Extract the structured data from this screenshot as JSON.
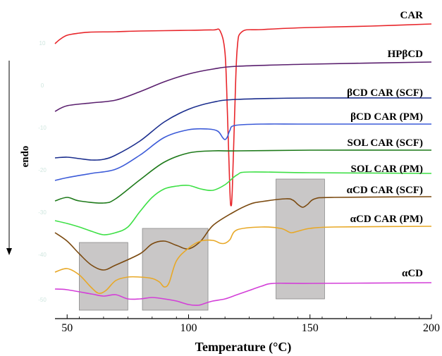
{
  "chart_data": {
    "type": "line",
    "title": "",
    "xlabel": "Temperature (°C)",
    "ylabel": "",
    "xlim": [
      45,
      200
    ],
    "xticks": [
      50,
      100,
      150,
      200
    ],
    "endo_label": "endo",
    "faint_labels": [
      "10",
      "0",
      "-10",
      "-20",
      "-30",
      "-40",
      "-50"
    ],
    "grey_boxes": [
      {
        "x0": 55,
        "x1": 75
      },
      {
        "x0": 81,
        "x1": 108
      },
      {
        "x0": 136,
        "x1": 156
      }
    ],
    "series": [
      {
        "name": "CAR",
        "color": "#e8262b",
        "points": [
          [
            45,
            62
          ],
          [
            47,
            56
          ],
          [
            50,
            50
          ],
          [
            55,
            47
          ],
          [
            60,
            45.5
          ],
          [
            70,
            45
          ],
          [
            80,
            44
          ],
          [
            100,
            43
          ],
          [
            110,
            42.5
          ],
          [
            113,
            44
          ],
          [
            115,
            75
          ],
          [
            116,
            160
          ],
          [
            117,
            270
          ],
          [
            117.5,
            292
          ],
          [
            118,
            270
          ],
          [
            119,
            160
          ],
          [
            120,
            70
          ],
          [
            122,
            45
          ],
          [
            130,
            42
          ],
          [
            150,
            39
          ],
          [
            175,
            37
          ],
          [
            200,
            34
          ]
        ]
      },
      {
        "name": "HPβCD",
        "color": "#5a1f6e",
        "points": [
          [
            45,
            158
          ],
          [
            50,
            150
          ],
          [
            60,
            146
          ],
          [
            70,
            142
          ],
          [
            80,
            130
          ],
          [
            90,
            116
          ],
          [
            100,
            105
          ],
          [
            110,
            98
          ],
          [
            120,
            94
          ],
          [
            150,
            91
          ],
          [
            200,
            88
          ]
        ]
      },
      {
        "name": "βCD CAR (SCF)",
        "color": "#1b2e8e",
        "points": [
          [
            45,
            224
          ],
          [
            50,
            223
          ],
          [
            55,
            225
          ],
          [
            60,
            227
          ],
          [
            65,
            226
          ],
          [
            70,
            220
          ],
          [
            80,
            200
          ],
          [
            90,
            173
          ],
          [
            100,
            155
          ],
          [
            110,
            145
          ],
          [
            120,
            141
          ],
          [
            150,
            139
          ],
          [
            200,
            139
          ]
        ]
      },
      {
        "name": "βCD CAR (PM)",
        "color": "#3c5bd8",
        "points": [
          [
            45,
            256
          ],
          [
            50,
            252
          ],
          [
            60,
            246
          ],
          [
            70,
            240
          ],
          [
            80,
            220
          ],
          [
            90,
            195
          ],
          [
            100,
            184
          ],
          [
            108,
            183
          ],
          [
            112,
            186
          ],
          [
            114,
            195
          ],
          [
            115,
            198
          ],
          [
            116,
            194
          ],
          [
            117,
            185
          ],
          [
            119,
            178
          ],
          [
            130,
            176
          ],
          [
            150,
            176
          ],
          [
            200,
            176
          ]
        ]
      },
      {
        "name": "SOL CAR (SCF)",
        "color": "#1e7a1a",
        "points": [
          [
            45,
            285
          ],
          [
            50,
            280
          ],
          [
            55,
            285
          ],
          [
            65,
            288
          ],
          [
            70,
            282
          ],
          [
            80,
            255
          ],
          [
            90,
            230
          ],
          [
            100,
            217
          ],
          [
            110,
            214
          ],
          [
            120,
            214
          ],
          [
            150,
            213
          ],
          [
            200,
            213
          ]
        ]
      },
      {
        "name": "SOL CAR (PM)",
        "color": "#3ee046",
        "points": [
          [
            45,
            313
          ],
          [
            50,
            317
          ],
          [
            55,
            322
          ],
          [
            60,
            328
          ],
          [
            65,
            333
          ],
          [
            70,
            330
          ],
          [
            75,
            322
          ],
          [
            80,
            300
          ],
          [
            85,
            280
          ],
          [
            90,
            268
          ],
          [
            95,
            264
          ],
          [
            100,
            263
          ],
          [
            105,
            268
          ],
          [
            110,
            270
          ],
          [
            115,
            262
          ],
          [
            120,
            248
          ],
          [
            125,
            244
          ],
          [
            150,
            245
          ],
          [
            200,
            246
          ]
        ]
      },
      {
        "name": "αCD CAR (SCF)",
        "color": "#7b4a10",
        "points": [
          [
            45,
            330
          ],
          [
            50,
            342
          ],
          [
            55,
            360
          ],
          [
            60,
            376
          ],
          [
            65,
            383
          ],
          [
            70,
            376
          ],
          [
            80,
            360
          ],
          [
            85,
            346
          ],
          [
            90,
            342
          ],
          [
            95,
            348
          ],
          [
            100,
            353
          ],
          [
            105,
            342
          ],
          [
            110,
            320
          ],
          [
            118,
            302
          ],
          [
            125,
            290
          ],
          [
            130,
            286
          ],
          [
            140,
            282
          ],
          [
            143,
            284
          ],
          [
            145,
            290
          ],
          [
            147,
            294
          ],
          [
            149,
            290
          ],
          [
            152,
            282
          ],
          [
            160,
            280
          ],
          [
            200,
            279
          ]
        ]
      },
      {
        "name": "αCD CAR (PM)",
        "color": "#e8a826",
        "points": [
          [
            45,
            386
          ],
          [
            50,
            381
          ],
          [
            55,
            390
          ],
          [
            60,
            408
          ],
          [
            63,
            416
          ],
          [
            66,
            412
          ],
          [
            70,
            398
          ],
          [
            75,
            393
          ],
          [
            80,
            393
          ],
          [
            85,
            395
          ],
          [
            88,
            400
          ],
          [
            90,
            407
          ],
          [
            92,
            401
          ],
          [
            95,
            370
          ],
          [
            100,
            352
          ],
          [
            105,
            342
          ],
          [
            110,
            341
          ],
          [
            113,
            345
          ],
          [
            115,
            345
          ],
          [
            117,
            340
          ],
          [
            120,
            326
          ],
          [
            130,
            322
          ],
          [
            138,
            324
          ],
          [
            142,
            330
          ],
          [
            145,
            328
          ],
          [
            150,
            324
          ],
          [
            160,
            322
          ],
          [
            200,
            321
          ]
        ]
      },
      {
        "name": "αCD",
        "color": "#d33fd8",
        "points": [
          [
            45,
            410
          ],
          [
            50,
            411
          ],
          [
            60,
            417
          ],
          [
            65,
            420
          ],
          [
            70,
            418
          ],
          [
            75,
            424
          ],
          [
            80,
            424
          ],
          [
            85,
            422
          ],
          [
            90,
            424
          ],
          [
            95,
            427
          ],
          [
            100,
            432
          ],
          [
            104,
            433
          ],
          [
            107,
            430
          ],
          [
            110,
            427
          ],
          [
            115,
            424
          ],
          [
            120,
            418
          ],
          [
            125,
            412
          ],
          [
            130,
            406
          ],
          [
            135,
            402
          ],
          [
            150,
            402
          ],
          [
            200,
            401
          ]
        ]
      }
    ]
  }
}
